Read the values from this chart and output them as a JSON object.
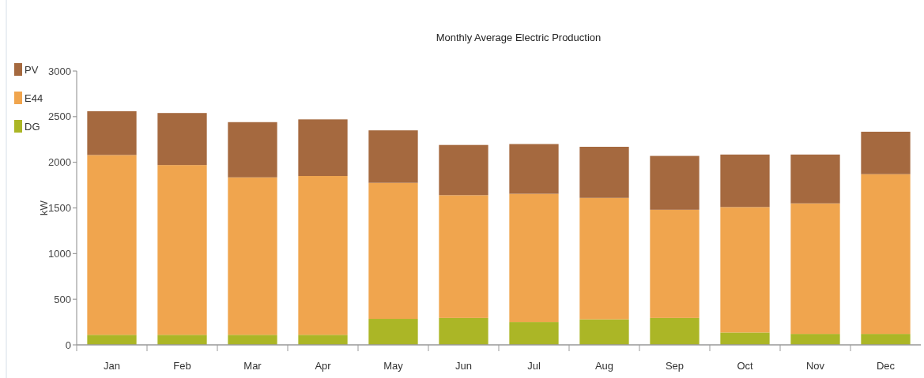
{
  "chart_data": {
    "type": "bar",
    "title": "Monthly Average Electric Production",
    "ylabel": "kW",
    "stacked": true,
    "legend": "top left",
    "grid": false,
    "categories": [
      "Jan",
      "Feb",
      "Mar",
      "Apr",
      "May",
      "Jun",
      "Jul",
      "Aug",
      "Sep",
      "Oct",
      "Nov",
      "Dec"
    ],
    "series": [
      {
        "name": "DG",
        "color": "#abb626",
        "values": [
          110,
          110,
          110,
          110,
          285,
          295,
          250,
          280,
          295,
          135,
          120,
          120
        ]
      },
      {
        "name": "E44",
        "color": "#f0a54e",
        "values": [
          1970,
          1860,
          1725,
          1740,
          1490,
          1345,
          1405,
          1330,
          1185,
          1375,
          1430,
          1750
        ]
      },
      {
        "name": "PV",
        "color": "#a5693f",
        "values": [
          480,
          570,
          605,
          620,
          575,
          550,
          545,
          560,
          590,
          575,
          535,
          465
        ]
      }
    ],
    "ylim": [
      0,
      3000
    ],
    "yticks": [
      0,
      500,
      1000,
      1500,
      2000,
      2500,
      3000
    ]
  }
}
